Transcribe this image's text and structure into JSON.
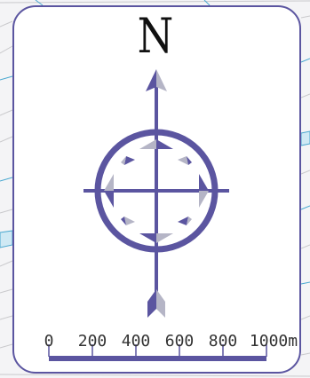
{
  "map_background": {
    "road_color": "#c9c9cc",
    "water_color": "#cfe9f4",
    "water_edge_color": "#4aa8d0"
  },
  "north_arrow": {
    "letter": "N",
    "accent_color": "#5b55a0",
    "shadow_color": "#b5b5c6"
  },
  "scale_bar": {
    "ticks": [
      "0",
      "200",
      "400",
      "600",
      "800",
      "1000m"
    ],
    "bar_color": "#5b55a0"
  }
}
